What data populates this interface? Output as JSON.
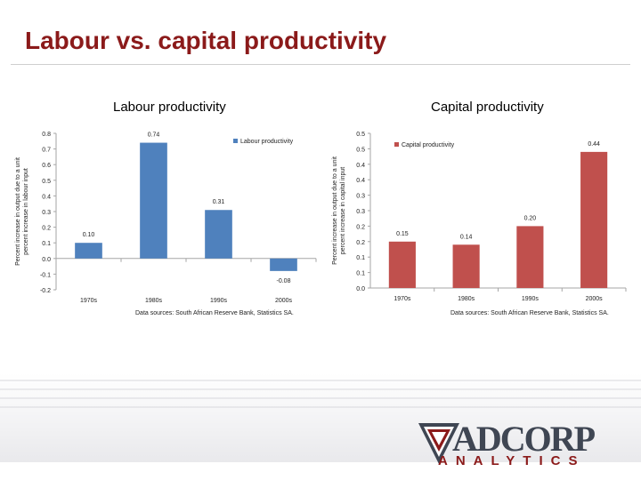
{
  "slide": {
    "title": "Labour vs. capital productivity"
  },
  "charts": {
    "labour": {
      "heading": "Labour productivity",
      "source": "Data sources: South African Reserve Bank, Statistics SA."
    },
    "capital": {
      "heading": "Capital productivity",
      "source": "Data sources: South African Reserve Bank, Statistics SA."
    }
  },
  "logo": {
    "name": "ADCORP",
    "sub": "ANALYTICS"
  },
  "colors": {
    "title": "#8b1a1a",
    "labour_bar": "#4f81bd",
    "capital_bar": "#c0504d"
  },
  "chart_data": [
    {
      "type": "bar",
      "title": "Labour productivity",
      "ylabel": "Percent increase in output due to a unit percent increase in labour input",
      "categories": [
        "1970s",
        "1980s",
        "1990s",
        "2000s"
      ],
      "series": [
        {
          "name": "Labour productivity",
          "values": [
            0.1,
            0.74,
            0.31,
            -0.08
          ]
        }
      ],
      "value_labels": [
        "0.10",
        "0.74",
        "0.31",
        "-0.08"
      ],
      "ylim": [
        -0.2,
        0.8
      ],
      "yticks": [
        "-0.2",
        "-0.1",
        "0.0",
        "0.1",
        "0.2",
        "0.3",
        "0.4",
        "0.5",
        "0.6",
        "0.7",
        "0.8"
      ],
      "legend": "top-right",
      "grid": false
    },
    {
      "type": "bar",
      "title": "Capital productivity",
      "ylabel": "Percent increase in output due to a unit percent increase in capital input",
      "categories": [
        "1970s",
        "1980s",
        "1990s",
        "2000s"
      ],
      "series": [
        {
          "name": "Capital productivity",
          "values": [
            0.15,
            0.14,
            0.2,
            0.44
          ]
        }
      ],
      "value_labels": [
        "0.15",
        "0.14",
        "0.20",
        "0.44"
      ],
      "ylim": [
        0.0,
        0.5
      ],
      "yticks": [
        "0.0",
        "0.1",
        "0.1",
        "0.2",
        "0.2",
        "0.3",
        "0.3",
        "0.4",
        "0.4",
        "0.5",
        "0.5"
      ],
      "legend": "top-left",
      "grid": false
    }
  ]
}
